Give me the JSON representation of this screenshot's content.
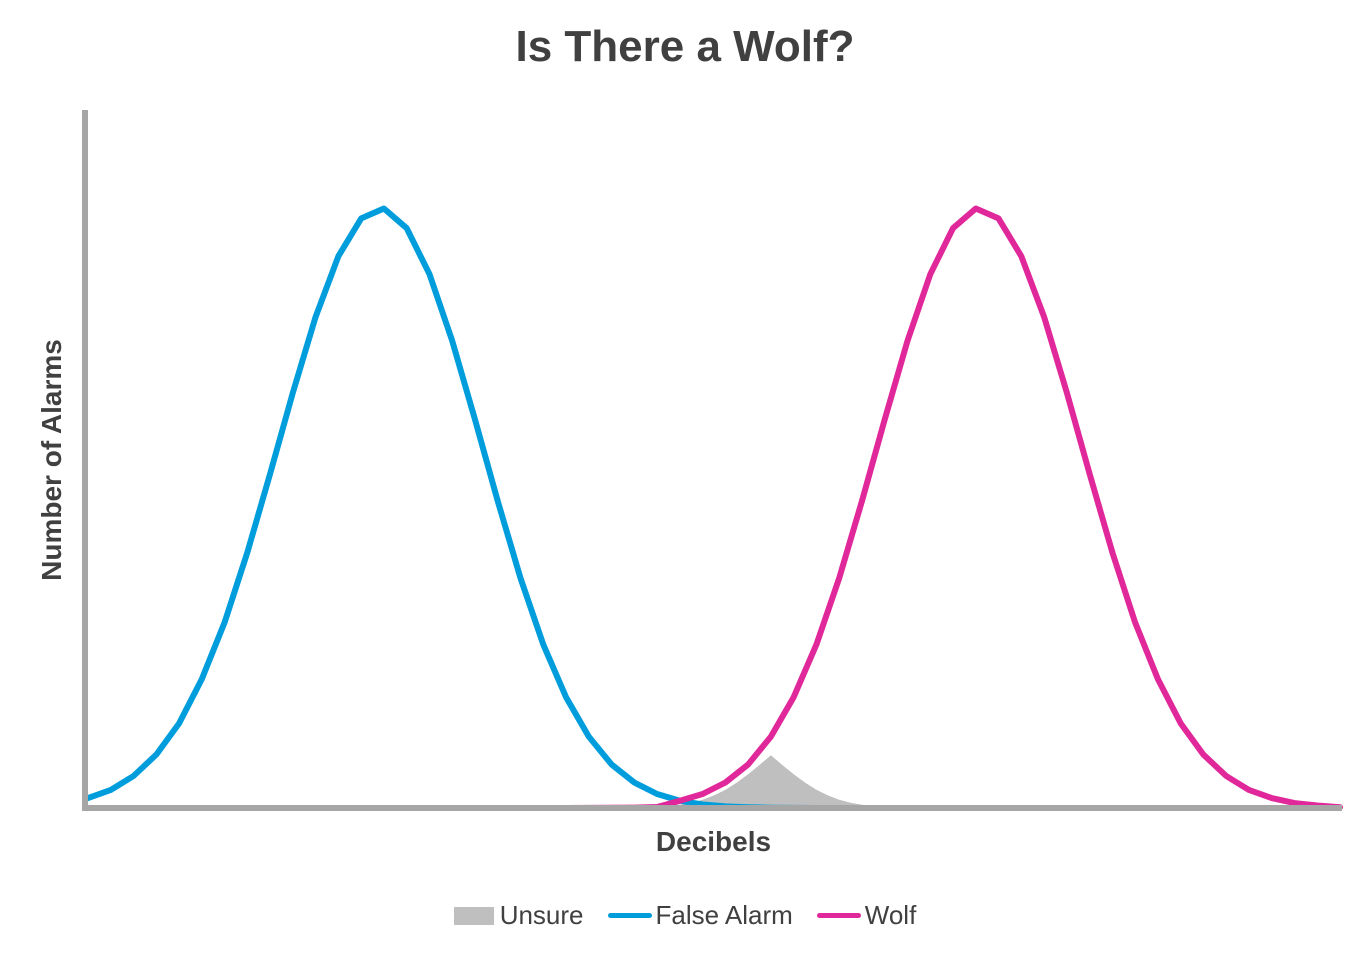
{
  "chart_data": {
    "type": "line",
    "title": "Is There a Wolf?",
    "xlabel": "Decibels",
    "ylabel": "Number of Alarms",
    "x_ticks": false,
    "y_ticks": false,
    "grid": false,
    "legend_position": "bottom",
    "series": [
      {
        "name": "Unsure",
        "kind": "area",
        "color": "#bfbfbf",
        "x": [
          40,
          42,
          44,
          46,
          48,
          50,
          52,
          54,
          56,
          58,
          60,
          62,
          64,
          66,
          68,
          70,
          72,
          74,
          76,
          78,
          80
        ],
        "y": [
          0.012,
          0.022,
          0.039,
          0.064,
          0.101,
          0.154,
          0.223,
          0.309,
          0.411,
          0.524,
          0.642,
          0.524,
          0.411,
          0.309,
          0.223,
          0.154,
          0.101,
          0.064,
          0.039,
          0.022,
          0.012
        ]
      },
      {
        "name": "False Alarm",
        "kind": "line",
        "color": "#009ddc",
        "x": [
          -60,
          -56,
          -52,
          -48,
          -44,
          -40,
          -36,
          -32,
          -28,
          -24,
          -20,
          -16,
          -12,
          -8,
          -4,
          0,
          4,
          8,
          12,
          16,
          20,
          24,
          28,
          32,
          36,
          40,
          44,
          48,
          52,
          56,
          60,
          64,
          68,
          72,
          76,
          80
        ],
        "y": [
          0.12,
          0.22,
          0.39,
          0.65,
          1.03,
          1.57,
          2.26,
          3.11,
          4.07,
          5.06,
          5.98,
          6.72,
          7.18,
          7.3,
          7.06,
          6.5,
          5.69,
          4.73,
          3.74,
          2.8,
          1.99,
          1.35,
          0.87,
          0.53,
          0.31,
          0.17,
          0.088,
          0.043,
          0.02,
          0.0087,
          0.0036,
          0.0014,
          0.0005,
          0.0002,
          0.0001,
          0.0
        ]
      },
      {
        "name": "Wolf",
        "kind": "line",
        "color": "#e0289a",
        "x": [
          20,
          24,
          28,
          32,
          36,
          40,
          44,
          48,
          52,
          56,
          60,
          64,
          68,
          72,
          76,
          80,
          84,
          88,
          92,
          96,
          100,
          104,
          108,
          112,
          116,
          120,
          124,
          128,
          132,
          136,
          140,
          144,
          148,
          152,
          156,
          160
        ],
        "y": [
          0.0001,
          0.0003,
          0.0008,
          0.0021,
          0.0052,
          0.012,
          0.088,
          0.17,
          0.31,
          0.53,
          0.87,
          1.35,
          1.99,
          2.8,
          3.74,
          4.73,
          5.69,
          6.5,
          7.06,
          7.3,
          7.18,
          6.72,
          5.98,
          5.06,
          4.07,
          3.11,
          2.26,
          1.57,
          1.03,
          0.65,
          0.39,
          0.22,
          0.12,
          0.06,
          0.03,
          0.01
        ]
      }
    ],
    "xlim": [
      -60,
      160
    ],
    "ylim": [
      0,
      8.5
    ]
  }
}
